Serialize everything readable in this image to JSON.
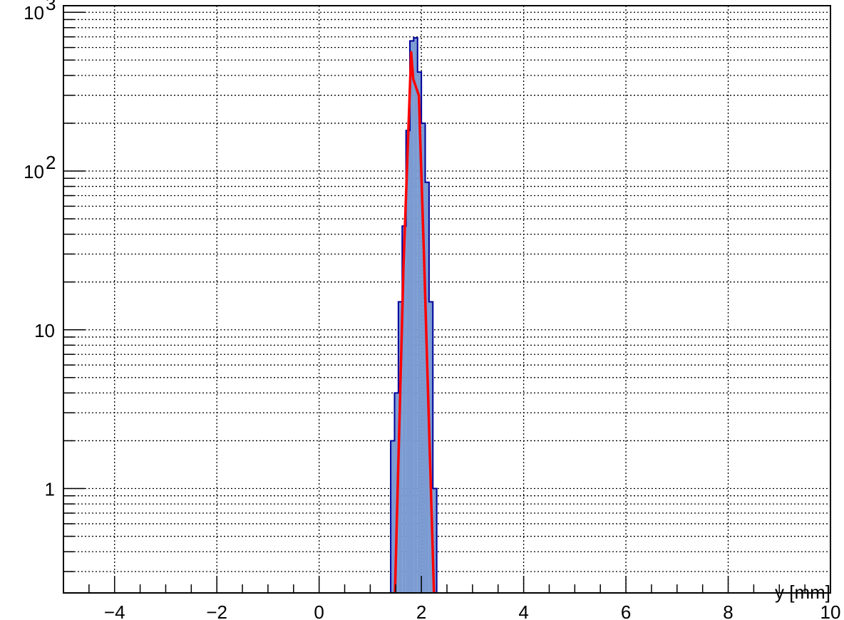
{
  "chart_data": {
    "type": "histogram",
    "xlabel": "y [mm]",
    "xlim": [
      -5,
      10
    ],
    "ylim": [
      0.22,
      1100
    ],
    "yscale": "log",
    "grid": true,
    "bin_width": 0.075,
    "x_ticks": [
      {
        "value": -4,
        "label": "−4"
      },
      {
        "value": -2,
        "label": "−2"
      },
      {
        "value": 0,
        "label": "0"
      },
      {
        "value": 2,
        "label": "2"
      },
      {
        "value": 4,
        "label": "4"
      },
      {
        "value": 6,
        "label": "6"
      },
      {
        "value": 8,
        "label": "8"
      },
      {
        "value": 10,
        "label": "10"
      }
    ],
    "y_ticks": [
      {
        "value": 1,
        "label": "1"
      },
      {
        "value": 10,
        "label": "10"
      },
      {
        "value": 100,
        "label": "10",
        "sup": "2"
      },
      {
        "value": 1000,
        "label": "10",
        "sup": "3"
      }
    ],
    "bins": [
      {
        "low": 1.4,
        "count": 2
      },
      {
        "low": 1.475,
        "count": 4
      },
      {
        "low": 1.55,
        "count": 15
      },
      {
        "low": 1.625,
        "count": 45
      },
      {
        "low": 1.7,
        "count": 180
      },
      {
        "low": 1.775,
        "count": 660
      },
      {
        "low": 1.85,
        "count": 690
      },
      {
        "low": 1.925,
        "count": 420
      },
      {
        "low": 2.0,
        "count": 200
      },
      {
        "low": 2.075,
        "count": 85
      },
      {
        "low": 2.15,
        "count": 15
      },
      {
        "low": 2.225,
        "count": 1
      }
    ],
    "fit": {
      "color": "#ff0000",
      "points": [
        [
          1.48,
          0.2
        ],
        [
          1.65,
          25
        ],
        [
          1.8,
          560
        ],
        [
          1.84,
          380
        ],
        [
          1.95,
          300
        ],
        [
          2.05,
          30
        ],
        [
          2.25,
          0.2
        ]
      ]
    },
    "colors": {
      "fill": "#7b9bd2",
      "line": "#000099",
      "fit": "#ff0000"
    }
  }
}
